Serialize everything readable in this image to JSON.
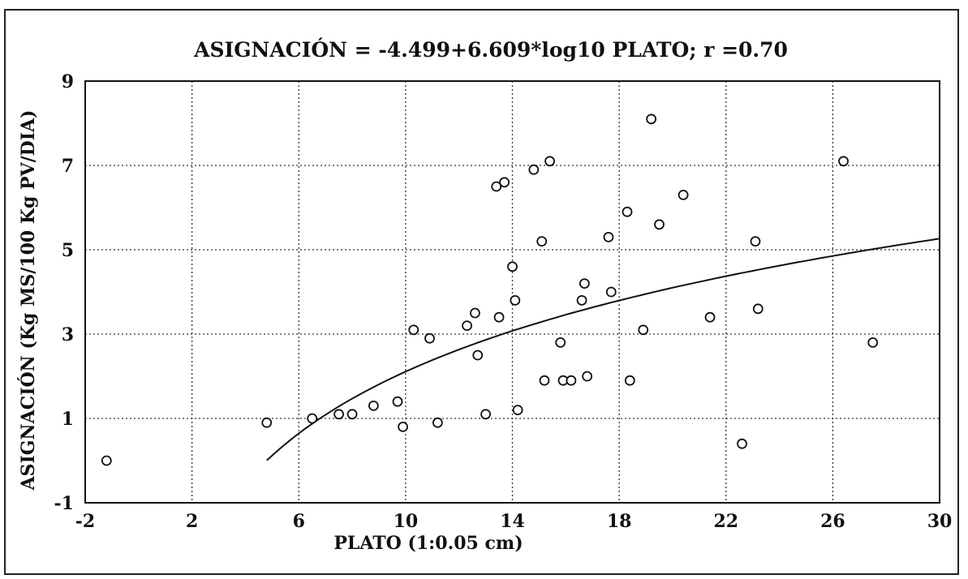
{
  "chart_data": {
    "type": "scatter",
    "title": "ASIGNACIÓN = -4.499+6.609*log10 PLATO; r =0.70",
    "xlabel": "PLATO (1:0.05 cm)",
    "ylabel": "ASIGNACIÓN (Kg MS/100 Kg PV/DIA)",
    "xlim": [
      -2,
      30
    ],
    "ylim": [
      -1,
      9
    ],
    "xticks": [
      "-2",
      "2",
      "6",
      "10",
      "14",
      "18",
      "22",
      "26",
      "30"
    ],
    "yticks": [
      "-1",
      "1",
      "3",
      "5",
      "7",
      "9"
    ],
    "grid": true,
    "series": [
      {
        "marker": "open-circle",
        "x": [
          -1.2,
          4.8,
          6.5,
          7.5,
          8.0,
          8.8,
          9.7,
          9.9,
          10.3,
          10.9,
          11.2,
          12.3,
          12.6,
          12.7,
          13.0,
          13.4,
          13.5,
          13.7,
          14.0,
          14.1,
          14.2,
          14.8,
          15.1,
          15.2,
          15.4,
          15.8,
          15.9,
          16.2,
          16.6,
          16.7,
          16.8,
          17.6,
          17.7,
          18.3,
          18.4,
          18.9,
          19.2,
          19.5,
          20.4,
          21.4,
          22.6,
          23.1,
          23.2,
          26.4,
          27.5
        ],
        "y": [
          0.0,
          0.9,
          1.0,
          1.1,
          1.1,
          1.3,
          1.4,
          0.8,
          3.1,
          2.9,
          0.9,
          3.2,
          3.5,
          2.5,
          1.1,
          6.5,
          3.4,
          6.6,
          4.6,
          3.8,
          1.2,
          6.9,
          5.2,
          1.9,
          7.1,
          2.8,
          1.9,
          1.9,
          3.8,
          4.2,
          2.0,
          5.3,
          4.0,
          5.9,
          1.9,
          3.1,
          8.1,
          5.6,
          6.3,
          3.4,
          0.4,
          5.2,
          3.6,
          7.1,
          2.8
        ]
      }
    ],
    "fit": {
      "a": -4.499,
      "b": 6.609,
      "x_from": 4.8,
      "x_to": 30
    }
  }
}
